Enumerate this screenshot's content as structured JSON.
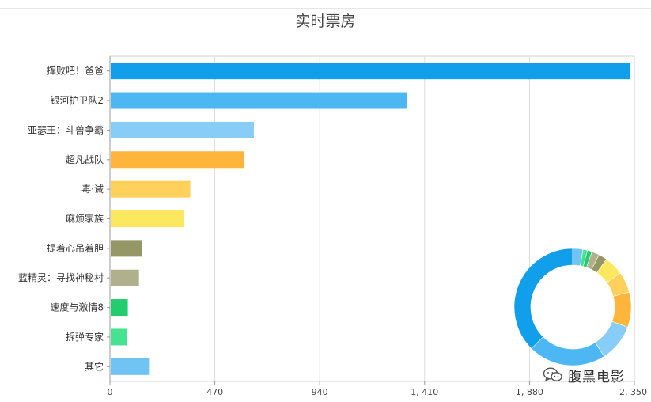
{
  "title": "实时票房",
  "watermark": {
    "text": "腹黑电影",
    "icon": "wechat-icon"
  },
  "chart_data": [
    {
      "type": "bar",
      "orientation": "horizontal",
      "title": "实时票房",
      "categories": [
        "挥败吧！爸爸",
        "银河护卫队2",
        "亚瑟王：斗兽争霸",
        "超凡战队",
        "毒·诫",
        "麻烦家族",
        "提着心吊着胆",
        "蓝精灵：寻找神秘村",
        "速度与激情8",
        "拆弹专家",
        "其它"
      ],
      "values": [
        2330,
        1330,
        645,
        600,
        360,
        330,
        145,
        130,
        80,
        75,
        175
      ],
      "colors": [
        "#119eea",
        "#4db7f4",
        "#87cdf7",
        "#ffb43c",
        "#ffd05a",
        "#fce85f",
        "#969766",
        "#b0b18c",
        "#22cc6f",
        "#45e390",
        "#6fc4f4"
      ],
      "xlim": [
        0,
        2350
      ],
      "xticks": [
        0,
        470,
        940,
        1410,
        1880,
        2350
      ],
      "xtick_labels": [
        "0",
        "470",
        "940",
        "1, 410",
        "1, 880",
        "2, 350"
      ],
      "grid": "vertical"
    },
    {
      "type": "pie",
      "style": "donut",
      "slices": [
        {
          "value": 2330,
          "color": "#119eea"
        },
        {
          "value": 1330,
          "color": "#4db7f4"
        },
        {
          "value": 645,
          "color": "#87cdf7"
        },
        {
          "value": 600,
          "color": "#ffb43c"
        },
        {
          "value": 360,
          "color": "#ffd05a"
        },
        {
          "value": 330,
          "color": "#fce85f"
        },
        {
          "value": 145,
          "color": "#969766"
        },
        {
          "value": 130,
          "color": "#b0b18c"
        },
        {
          "value": 80,
          "color": "#22cc6f"
        },
        {
          "value": 75,
          "color": "#45e390"
        },
        {
          "value": 175,
          "color": "#6fc4f4"
        }
      ]
    }
  ]
}
